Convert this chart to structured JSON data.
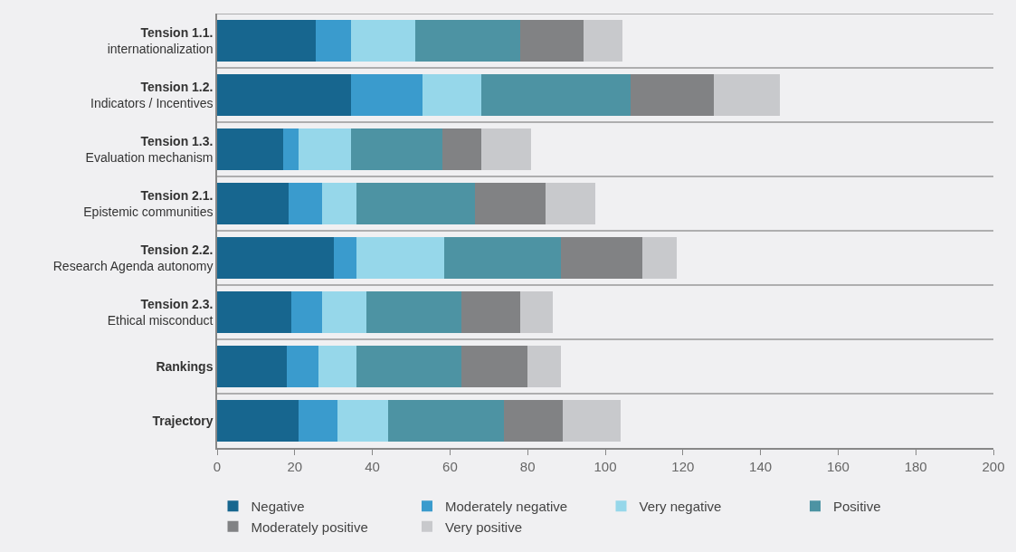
{
  "chart_data": {
    "type": "bar",
    "orientation": "horizontal",
    "stacked": true,
    "categories": [
      "Tension 1.1.\ninternationalization",
      "Tension 1.2.\nIndicators / Incentives",
      "Tension 1.3.\nEvaluation mechanism",
      "Tension 2.1.\nEpistemic communities",
      "Tension 2.2.\nResearch Agenda autonomy",
      "Tension 2.3.\nEthical misconduct",
      "Rankings",
      "Trajectory"
    ],
    "series": [
      {
        "name": "Negative",
        "color": "#17668f",
        "values": [
          25.5,
          34.5,
          17,
          18.5,
          30,
          19,
          18,
          21
        ]
      },
      {
        "name": "Moderately negative",
        "color": "#3a9bcd",
        "values": [
          9,
          18.5,
          4,
          8.5,
          6,
          8,
          8,
          10
        ]
      },
      {
        "name": "Very negative",
        "color": "#96d7ea",
        "values": [
          16.5,
          15,
          13.5,
          9,
          22.5,
          11.5,
          10,
          13
        ]
      },
      {
        "name": "Positive",
        "color": "#4d93a3",
        "values": [
          27,
          38.5,
          23.5,
          30.5,
          30,
          24.5,
          27,
          30
        ]
      },
      {
        "name": "Moderately positive",
        "color": "#818284",
        "values": [
          16.5,
          21.5,
          10,
          18,
          21,
          15,
          17,
          15
        ]
      },
      {
        "name": "Very positive",
        "color": "#c8c9cc",
        "values": [
          10,
          17,
          13,
          13,
          9,
          8.5,
          8.5,
          15
        ]
      }
    ],
    "xlim": [
      0,
      200
    ],
    "xticks": [
      0,
      20,
      40,
      60,
      80,
      100,
      120,
      140,
      160,
      180,
      200
    ],
    "grid": "y",
    "legend": "bottom"
  }
}
